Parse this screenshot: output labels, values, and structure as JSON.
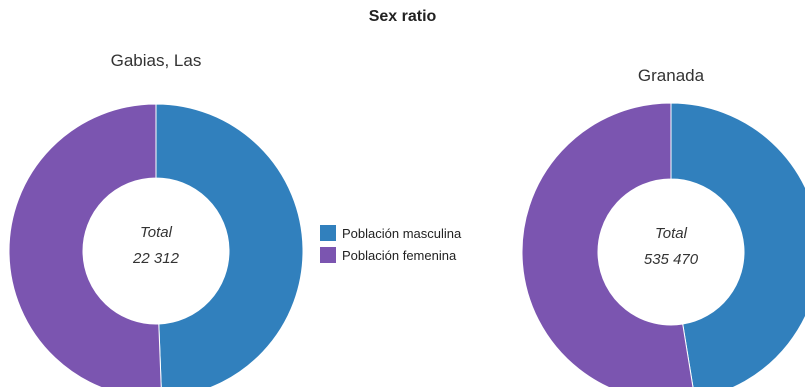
{
  "chart_data": {
    "type": "donut",
    "title": "Sex ratio",
    "legend": {
      "placement": "center",
      "items": [
        {
          "label": "Población masculina",
          "color": "#3180BD"
        },
        {
          "label": "Población femenina",
          "color": "#7B55B0"
        }
      ]
    },
    "charts": [
      {
        "name": "Gabias, Las",
        "center_label": "Total",
        "center_value": "22 312",
        "total": 22312,
        "values": [
          11020,
          11292
        ]
      },
      {
        "name": "Granada",
        "center_label": "Total",
        "center_value": "535 470",
        "total": 535470,
        "values": [
          254000,
          281470
        ]
      }
    ]
  }
}
